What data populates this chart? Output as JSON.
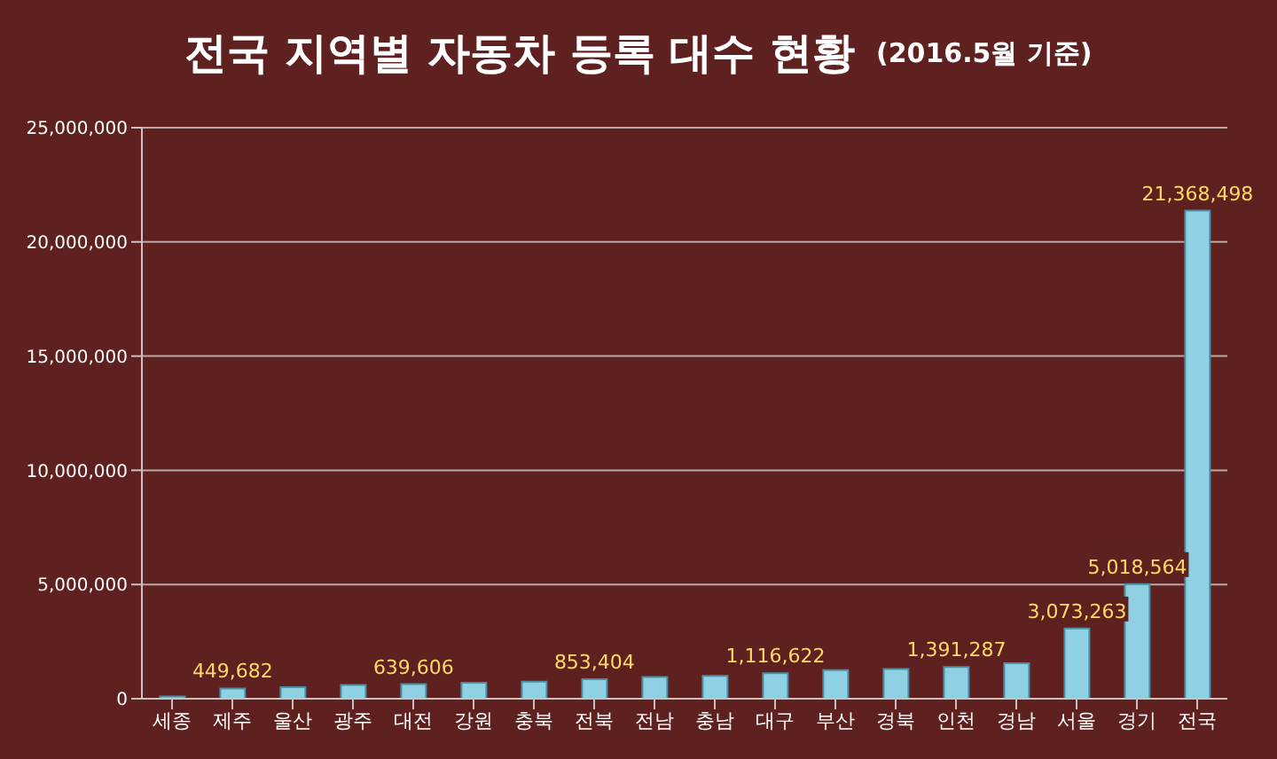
{
  "chart_data": {
    "type": "bar",
    "title": "전국 지역별 자동차 등록 대수 현황",
    "subtitle": "(2016.5월 기준)",
    "categories": [
      "세종",
      "제주",
      "울산",
      "광주",
      "대전",
      "강원",
      "충북",
      "전북",
      "전남",
      "충남",
      "대구",
      "부산",
      "경북",
      "인천",
      "경남",
      "서울",
      "경기",
      "전국"
    ],
    "values": [
      100000,
      449682,
      500000,
      600000,
      639606,
      700000,
      750000,
      853404,
      950000,
      1000000,
      1116622,
      1250000,
      1300000,
      1391287,
      1550000,
      3073263,
      5018564,
      21368498
    ],
    "value_labels": [
      null,
      "449,682",
      null,
      null,
      "639,606",
      null,
      null,
      "853,404",
      null,
      null,
      "1,116,622",
      null,
      null,
      "1,391,287",
      null,
      "3,073,263",
      "5,018,564",
      "21,368,498"
    ],
    "color": "#8fd0e2",
    "ylim": [
      0,
      25000000
    ],
    "yticks": [
      {
        "value": 0,
        "label": "0"
      },
      {
        "value": 5000000,
        "label": "5,000,000"
      },
      {
        "value": 10000000,
        "label": "10,000,000"
      },
      {
        "value": 15000000,
        "label": "15,000,000"
      },
      {
        "value": 20000000,
        "label": "20,000,000"
      },
      {
        "value": 25000000,
        "label": "25,000,000"
      }
    ],
    "grid": "y"
  }
}
